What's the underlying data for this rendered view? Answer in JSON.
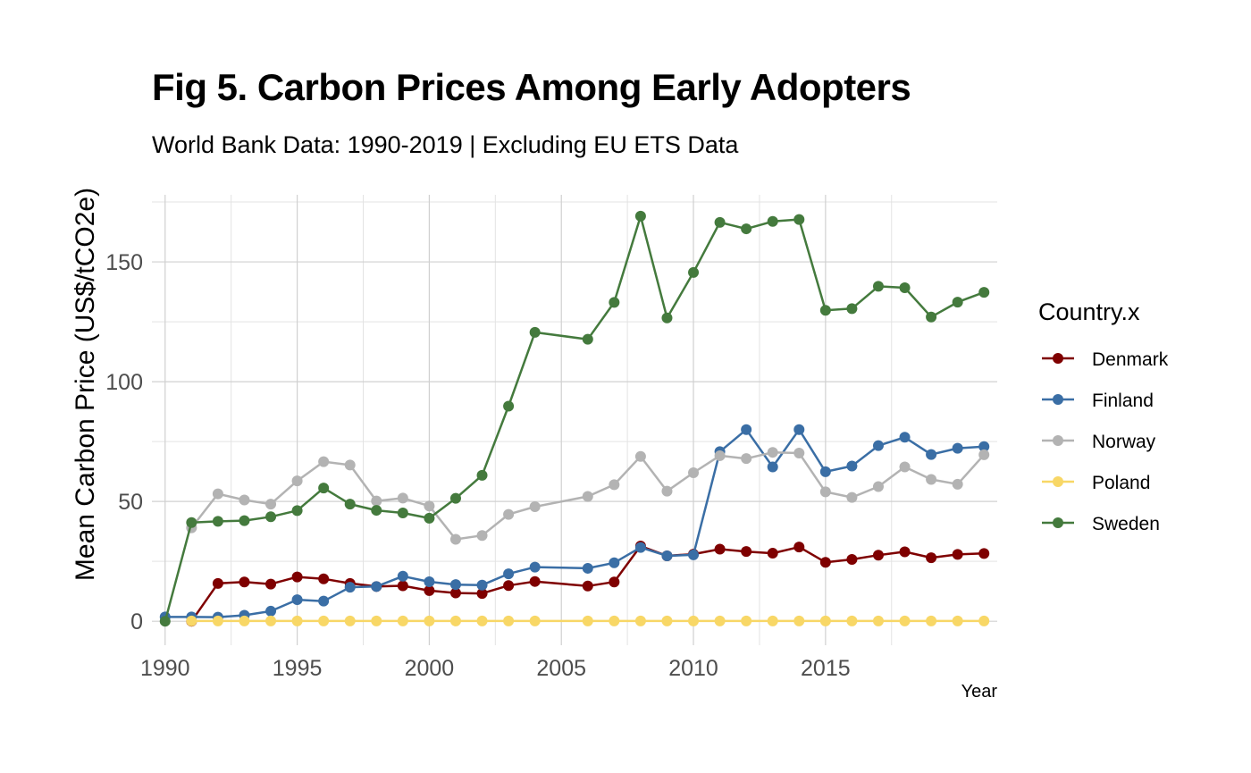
{
  "chart_data": {
    "type": "line",
    "title": "Fig 5. Carbon Prices Among Early Adopters",
    "subtitle": "World Bank Data: 1990-2019 | Excluding EU ETS Data",
    "xlabel": "Year",
    "ylabel": "Mean Carbon Price (US$/tCO2e)",
    "legend_title": "Country.x",
    "legend_position": "right",
    "grid": true,
    "xlim": [
      1989.5,
      2021.5
    ],
    "ylim": [
      -10,
      178
    ],
    "x_ticks": [
      1990,
      1995,
      2000,
      2005,
      2010,
      2015
    ],
    "y_ticks": [
      0,
      50,
      100,
      150
    ],
    "series": [
      {
        "name": "Denmark",
        "color": "#7f0000",
        "x": [
          1991,
          1992,
          1993,
          1994,
          1995,
          1996,
          1997,
          1998,
          1999,
          2000,
          2001,
          2002,
          2003,
          2004,
          2006,
          2007,
          2008,
          2009,
          2010,
          2011,
          2012,
          2013,
          2014,
          2015,
          2016,
          2017,
          2018,
          2019,
          2020,
          2021
        ],
        "y": [
          0,
          15.8,
          16.4,
          15.5,
          18.5,
          17.7,
          15.8,
          14.5,
          14.8,
          12.8,
          11.8,
          11.6,
          14.9,
          16.6,
          14.7,
          16.4,
          31.4,
          27.3,
          28.0,
          30.1,
          29.1,
          28.4,
          31.0,
          24.6,
          25.8,
          27.6,
          29.0,
          26.5,
          27.9,
          28.3
        ]
      },
      {
        "name": "Finland",
        "color": "#3a6ea5",
        "x": [
          1990,
          1991,
          1992,
          1993,
          1994,
          1995,
          1996,
          1997,
          1998,
          1999,
          2000,
          2001,
          2002,
          2003,
          2004,
          2006,
          2007,
          2008,
          2009,
          2010,
          2011,
          2012,
          2013,
          2014,
          2015,
          2016,
          2017,
          2018,
          2019,
          2020,
          2021
        ],
        "y": [
          1.8,
          1.8,
          1.7,
          2.5,
          4.2,
          9.0,
          8.4,
          14.2,
          14.5,
          18.8,
          16.5,
          15.3,
          15.1,
          19.8,
          22.6,
          22.1,
          24.4,
          30.8,
          27.3,
          27.7,
          70.8,
          80.0,
          64.4,
          80.0,
          62.4,
          64.8,
          73.3,
          76.8,
          69.6,
          72.2,
          72.9
        ]
      },
      {
        "name": "Norway",
        "color": "#b3b3b3",
        "x": [
          1991,
          1992,
          1993,
          1994,
          1995,
          1996,
          1997,
          1998,
          1999,
          2000,
          2001,
          2002,
          2003,
          2004,
          2006,
          2007,
          2008,
          2009,
          2010,
          2011,
          2012,
          2013,
          2014,
          2015,
          2016,
          2017,
          2018,
          2019,
          2020,
          2021
        ],
        "y": [
          39.0,
          53.2,
          50.6,
          48.9,
          58.6,
          66.6,
          65.2,
          50.2,
          51.4,
          48.1,
          34.2,
          35.8,
          44.6,
          47.8,
          52.1,
          57.0,
          68.8,
          54.3,
          62.0,
          69.1,
          67.9,
          70.5,
          70.2,
          54.0,
          51.7,
          56.2,
          64.4,
          59.2,
          57.2,
          69.5
        ]
      },
      {
        "name": "Poland",
        "color": "#f8d766",
        "x": [
          1991,
          1992,
          1993,
          1994,
          1995,
          1996,
          1997,
          1998,
          1999,
          2000,
          2001,
          2002,
          2003,
          2004,
          2006,
          2007,
          2008,
          2009,
          2010,
          2011,
          2012,
          2013,
          2014,
          2015,
          2016,
          2017,
          2018,
          2019,
          2020,
          2021
        ],
        "y": [
          0.1,
          0.1,
          0.1,
          0.1,
          0.1,
          0.1,
          0.1,
          0.1,
          0.1,
          0.1,
          0.1,
          0.1,
          0.1,
          0.1,
          0.1,
          0.1,
          0.1,
          0.1,
          0.1,
          0.1,
          0.1,
          0.1,
          0.1,
          0.1,
          0.1,
          0.1,
          0.1,
          0.1,
          0.1,
          0.1
        ]
      },
      {
        "name": "Sweden",
        "color": "#447a3d",
        "x": [
          1990,
          1991,
          1992,
          1993,
          1994,
          1995,
          1996,
          1997,
          1998,
          1999,
          2000,
          2001,
          2002,
          2003,
          2004,
          2006,
          2007,
          2008,
          2009,
          2010,
          2011,
          2012,
          2013,
          2014,
          2015,
          2016,
          2017,
          2018,
          2019,
          2020,
          2021
        ],
        "y": [
          0,
          41.2,
          41.7,
          42.0,
          43.6,
          46.2,
          55.6,
          48.9,
          46.3,
          45.2,
          43.0,
          51.3,
          60.9,
          89.8,
          120.6,
          117.7,
          133.1,
          169.1,
          126.6,
          145.6,
          166.5,
          163.8,
          166.9,
          167.7,
          129.8,
          130.5,
          139.8,
          139.2,
          127.0,
          133.2,
          137.3
        ]
      }
    ]
  }
}
